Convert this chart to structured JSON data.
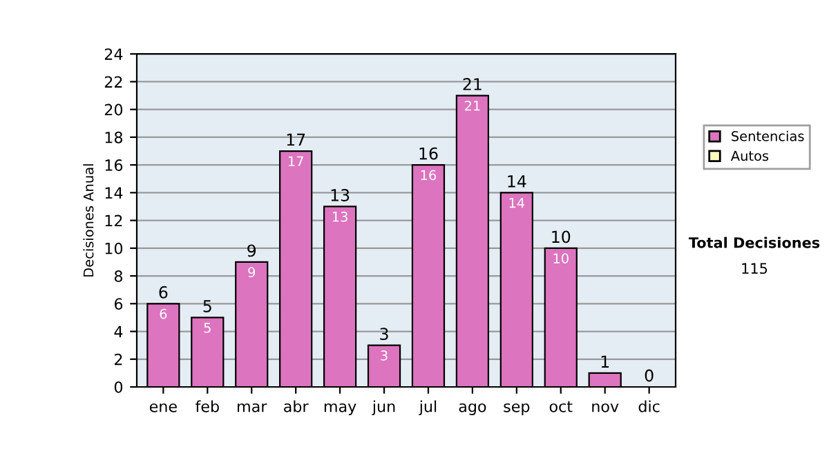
{
  "chart_data": {
    "type": "bar",
    "ylabel": "Decisiones Anual",
    "stacked": true,
    "categories": [
      "ene",
      "feb",
      "mar",
      "abr",
      "may",
      "jun",
      "jul",
      "ago",
      "sep",
      "oct",
      "nov",
      "dic"
    ],
    "series": [
      {
        "name": "Sentencias",
        "color": "#dd74bf",
        "values": [
          6,
          5,
          9,
          17,
          13,
          3,
          16,
          21,
          14,
          10,
          1,
          0
        ],
        "value_labels": [
          "6",
          "5",
          "9",
          "17",
          "13",
          "3",
          "16",
          "21",
          "14",
          "10",
          null,
          null
        ]
      },
      {
        "name": "Autos",
        "color": "#ffffc0",
        "values": [
          0,
          0,
          0,
          0,
          0,
          0,
          0,
          0,
          0,
          0,
          0,
          0
        ]
      }
    ],
    "totals": [
      "6",
      "5",
      "9",
      "17",
      "13",
      "3",
      "16",
      "21",
      "14",
      "10",
      "1",
      "0"
    ],
    "ylim": [
      0,
      24
    ],
    "yticks": [
      0,
      2,
      4,
      6,
      8,
      10,
      12,
      14,
      16,
      18,
      20,
      22,
      24
    ],
    "grid": "y",
    "legend": "right",
    "annotations": [
      "Total Decisiones",
      "115"
    ]
  }
}
